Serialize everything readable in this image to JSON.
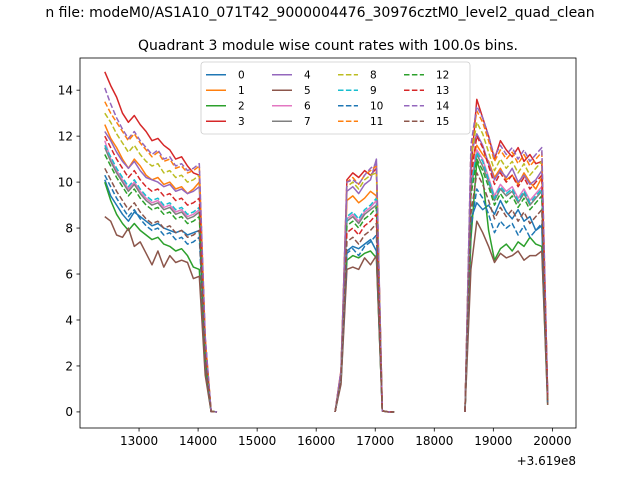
{
  "figure": {
    "suptitle": "n file: modeM0/AS1A10_071T42_9000004476_30976cztM0_level2_quad_clean",
    "title": "Quadrant 3 module wise count rates with 100.0s bins."
  },
  "chart_data": {
    "type": "line",
    "title": "Quadrant 3 module wise count rates with 100.0s bins.",
    "xlabel": "",
    "ylabel": "",
    "x_offset_label": "+3.619e8",
    "xlim": [
      12000,
      20400
    ],
    "ylim": [
      -0.7,
      15.4
    ],
    "xticks": [
      13000,
      14000,
      15000,
      16000,
      17000,
      18000,
      19000,
      20000
    ],
    "yticks": [
      0,
      2,
      4,
      6,
      8,
      10,
      12,
      14
    ],
    "grid": false,
    "legend": {
      "placement": "upper-center",
      "columns": 4
    },
    "segments_x": [
      [
        12420,
        12520,
        12620,
        12720,
        12820,
        12920,
        13020,
        13120,
        13220,
        13320,
        13420,
        13520,
        13620,
        13720,
        13820,
        13920,
        14020,
        14120,
        14220,
        14320
      ],
      [
        16320,
        16420,
        16520,
        16620,
        16720,
        16820,
        16920,
        17020,
        17120,
        17220,
        17320
      ],
      [
        18520,
        18620,
        18720,
        18820,
        18920,
        19020,
        19120,
        19220,
        19320,
        19420,
        19520,
        19620,
        19720,
        19820,
        19920
      ]
    ],
    "series": [
      {
        "name": "0",
        "color": "#1f77b4",
        "dashed": false,
        "segments": [
          [
            10.1,
            9.4,
            9.0,
            8.6,
            8.3,
            8.7,
            8.5,
            8.3,
            8.1,
            8.2,
            8.0,
            7.9,
            7.8,
            7.9,
            7.7,
            7.8,
            7.9,
            2.5,
            0.02,
            0.0
          ],
          [
            0.0,
            1.5,
            7.0,
            7.2,
            7.1,
            7.3,
            7.5,
            7.0,
            0.05,
            0.0,
            0.0
          ],
          [
            0.0,
            8.4,
            9.1,
            8.8,
            9.0,
            8.6,
            9.2,
            8.7,
            8.4,
            8.8,
            8.3,
            8.5,
            7.9,
            8.1,
            0.5
          ]
        ]
      },
      {
        "name": "1",
        "color": "#ff7f0e",
        "dashed": false,
        "segments": [
          [
            12.5,
            11.9,
            11.5,
            11.0,
            10.6,
            11.0,
            10.7,
            10.3,
            10.1,
            10.2,
            9.9,
            10.0,
            9.7,
            9.8,
            9.5,
            9.7,
            10.0,
            3.0,
            0.02,
            0.0
          ],
          [
            0.0,
            1.6,
            9.2,
            9.4,
            9.1,
            9.3,
            9.6,
            9.4,
            0.05,
            0.0,
            0.0
          ],
          [
            0.0,
            10.8,
            11.6,
            11.2,
            10.9,
            10.2,
            10.6,
            10.1,
            10.3,
            9.9,
            10.4,
            10.0,
            9.7,
            10.2,
            0.6
          ]
        ]
      },
      {
        "name": "2",
        "color": "#2ca02c",
        "dashed": false,
        "segments": [
          [
            10.0,
            9.2,
            8.6,
            8.2,
            7.9,
            8.2,
            7.9,
            7.7,
            7.5,
            7.6,
            7.3,
            7.2,
            7.0,
            7.1,
            6.8,
            6.3,
            6.2,
            1.8,
            0.02,
            0.0
          ],
          [
            0.0,
            1.3,
            6.6,
            6.8,
            6.7,
            6.9,
            7.0,
            6.7,
            0.04,
            0.0,
            0.0
          ],
          [
            0.0,
            7.5,
            10.9,
            10.2,
            7.9,
            6.6,
            7.1,
            7.3,
            7.0,
            7.4,
            7.2,
            7.6,
            7.3,
            7.2,
            0.3
          ]
        ]
      },
      {
        "name": "3",
        "color": "#d62728",
        "dashed": false,
        "segments": [
          [
            14.8,
            14.2,
            13.7,
            13.0,
            12.6,
            12.9,
            12.5,
            12.2,
            11.8,
            11.9,
            11.6,
            11.4,
            11.0,
            11.1,
            10.7,
            10.4,
            10.3,
            3.2,
            0.02,
            0.0
          ],
          [
            0.0,
            1.8,
            10.1,
            10.4,
            10.2,
            10.5,
            10.3,
            10.6,
            0.05,
            0.0,
            0.0
          ],
          [
            0.0,
            10.5,
            13.6,
            12.8,
            12.0,
            11.0,
            11.8,
            11.4,
            11.1,
            11.5,
            10.9,
            11.2,
            10.8,
            10.9,
            0.7
          ]
        ]
      },
      {
        "name": "4",
        "color": "#9467bd",
        "dashed": false,
        "segments": [
          [
            12.2,
            11.8,
            11.3,
            10.9,
            10.6,
            10.9,
            10.5,
            10.2,
            10.1,
            10.0,
            9.8,
            9.9,
            9.6,
            9.7,
            9.5,
            9.6,
            9.8,
            2.9,
            0.02,
            0.0
          ],
          [
            0.0,
            1.7,
            9.6,
            9.8,
            9.5,
            9.9,
            10.1,
            11.0,
            0.05,
            0.0,
            0.0
          ],
          [
            0.0,
            11.2,
            12.1,
            11.6,
            10.8,
            10.1,
            10.5,
            10.2,
            10.6,
            10.0,
            10.3,
            9.9,
            10.1,
            10.5,
            0.6
          ]
        ]
      },
      {
        "name": "5",
        "color": "#8c564b",
        "dashed": false,
        "segments": [
          [
            8.5,
            8.3,
            7.7,
            7.6,
            8.0,
            7.2,
            7.4,
            6.9,
            6.4,
            7.0,
            6.3,
            6.8,
            6.5,
            6.6,
            6.5,
            5.8,
            5.9,
            1.6,
            0.02,
            0.0
          ],
          [
            0.0,
            1.2,
            6.2,
            6.3,
            6.2,
            6.7,
            6.4,
            6.8,
            0.04,
            0.0,
            0.0
          ],
          [
            0.0,
            6.2,
            8.3,
            7.8,
            7.2,
            6.5,
            6.9,
            6.7,
            6.8,
            7.0,
            6.6,
            6.8,
            6.8,
            7.0,
            0.3
          ]
        ]
      },
      {
        "name": "6",
        "color": "#e377c2",
        "dashed": false,
        "segments": [
          [
            11.8,
            11.0,
            10.5,
            10.1,
            9.7,
            10.0,
            9.6,
            9.3,
            9.1,
            9.2,
            8.9,
            9.0,
            8.7,
            8.8,
            8.5,
            8.6,
            8.8,
            2.6,
            0.02,
            0.0
          ],
          [
            0.0,
            1.5,
            8.4,
            8.6,
            8.3,
            8.7,
            8.9,
            9.2,
            0.05,
            0.0,
            0.0
          ],
          [
            0.0,
            10.0,
            11.4,
            11.0,
            10.2,
            9.4,
            9.9,
            9.6,
            9.8,
            9.3,
            9.7,
            9.2,
            9.5,
            9.8,
            0.5
          ]
        ]
      },
      {
        "name": "7",
        "color": "#7f7f7f",
        "dashed": false,
        "segments": [
          [
            11.5,
            10.9,
            10.4,
            10.0,
            9.6,
            9.9,
            9.5,
            9.2,
            9.0,
            9.1,
            8.8,
            8.9,
            8.6,
            8.7,
            8.4,
            8.5,
            8.7,
            2.5,
            0.02,
            0.0
          ],
          [
            0.0,
            1.5,
            8.3,
            8.5,
            8.2,
            8.6,
            8.8,
            9.0,
            0.05,
            0.0,
            0.0
          ],
          [
            0.0,
            9.7,
            11.2,
            10.7,
            10.0,
            9.2,
            9.7,
            9.4,
            9.6,
            9.1,
            9.5,
            9.0,
            9.3,
            9.6,
            0.5
          ]
        ]
      },
      {
        "name": "8",
        "color": "#bcbd22",
        "dashed": true,
        "segments": [
          [
            13.0,
            12.6,
            12.1,
            11.7,
            11.3,
            11.6,
            11.2,
            10.9,
            10.7,
            10.8,
            10.4,
            10.5,
            10.2,
            10.3,
            10.0,
            10.1,
            10.3,
            3.1,
            0.02,
            0.0
          ],
          [
            0.0,
            1.7,
            9.8,
            10.0,
            9.7,
            10.1,
            10.3,
            10.4,
            0.05,
            0.0,
            0.0
          ],
          [
            0.0,
            11.0,
            12.6,
            12.1,
            11.3,
            10.5,
            11.0,
            10.6,
            10.9,
            10.4,
            10.8,
            10.3,
            10.6,
            10.9,
            0.6
          ]
        ]
      },
      {
        "name": "9",
        "color": "#17becf",
        "dashed": true,
        "segments": [
          [
            11.6,
            11.1,
            10.6,
            10.2,
            9.8,
            10.1,
            9.7,
            9.4,
            9.2,
            9.3,
            9.0,
            9.1,
            8.8,
            8.9,
            8.6,
            8.7,
            8.9,
            2.6,
            0.02,
            0.0
          ],
          [
            0.0,
            1.5,
            8.5,
            8.7,
            8.4,
            8.8,
            9.0,
            9.3,
            0.05,
            0.0,
            0.0
          ],
          [
            0.0,
            9.8,
            11.3,
            10.9,
            10.1,
            9.3,
            9.8,
            9.5,
            9.7,
            9.2,
            9.6,
            9.1,
            9.4,
            9.7,
            0.5
          ]
        ]
      },
      {
        "name": "10",
        "color": "#1f77b4",
        "dashed": true,
        "segments": [
          [
            10.3,
            9.8,
            9.3,
            8.9,
            8.5,
            8.8,
            8.4,
            8.1,
            7.9,
            8.0,
            7.7,
            7.8,
            7.5,
            7.6,
            7.3,
            7.4,
            7.6,
            2.2,
            0.02,
            0.0
          ],
          [
            0.0,
            1.4,
            6.9,
            7.1,
            6.8,
            7.2,
            7.4,
            7.7,
            0.04,
            0.0,
            0.0
          ],
          [
            0.0,
            8.0,
            9.7,
            9.3,
            8.6,
            7.8,
            8.3,
            8.0,
            8.2,
            7.7,
            8.1,
            7.6,
            7.9,
            8.2,
            0.4
          ]
        ]
      },
      {
        "name": "11",
        "color": "#ff7f0e",
        "dashed": true,
        "segments": [
          [
            13.5,
            13.0,
            12.6,
            12.2,
            11.8,
            12.1,
            11.7,
            11.4,
            11.1,
            11.3,
            10.9,
            11.0,
            10.6,
            10.7,
            10.4,
            10.5,
            10.7,
            3.2,
            0.02,
            0.0
          ],
          [
            0.0,
            1.8,
            10.0,
            10.2,
            9.9,
            10.3,
            10.5,
            10.7,
            0.05,
            0.0,
            0.0
          ],
          [
            0.0,
            11.4,
            13.1,
            12.6,
            11.8,
            10.9,
            11.4,
            11.0,
            11.3,
            10.8,
            11.2,
            10.7,
            11.0,
            11.3,
            0.6
          ]
        ]
      },
      {
        "name": "12",
        "color": "#2ca02c",
        "dashed": true,
        "segments": [
          [
            11.2,
            10.7,
            10.2,
            9.8,
            9.4,
            9.7,
            9.3,
            9.0,
            8.8,
            8.9,
            8.6,
            8.7,
            8.4,
            8.5,
            8.2,
            8.3,
            8.5,
            2.4,
            0.02,
            0.0
          ],
          [
            0.0,
            1.5,
            8.1,
            8.3,
            8.0,
            8.4,
            8.6,
            8.9,
            0.05,
            0.0,
            0.0
          ],
          [
            0.0,
            9.4,
            11.0,
            10.5,
            9.8,
            9.0,
            9.5,
            9.1,
            9.4,
            8.9,
            9.3,
            8.8,
            9.1,
            9.4,
            0.5
          ]
        ]
      },
      {
        "name": "13",
        "color": "#d62728",
        "dashed": true,
        "segments": [
          [
            12.0,
            11.5,
            11.0,
            10.6,
            10.2,
            10.5,
            10.1,
            9.8,
            9.6,
            9.7,
            9.4,
            9.5,
            9.2,
            9.3,
            9.0,
            9.1,
            9.3,
            2.7,
            0.02,
            0.0
          ],
          [
            0.0,
            1.6,
            7.8,
            8.0,
            7.7,
            8.1,
            8.3,
            8.6,
            0.05,
            0.0,
            0.0
          ],
          [
            0.0,
            10.2,
            12.0,
            11.5,
            10.7,
            9.9,
            10.4,
            10.0,
            10.3,
            9.8,
            10.2,
            9.7,
            10.0,
            10.3,
            0.5
          ]
        ]
      },
      {
        "name": "14",
        "color": "#9467bd",
        "dashed": true,
        "segments": [
          [
            14.1,
            13.4,
            12.8,
            12.3,
            11.9,
            12.2,
            11.8,
            11.5,
            11.2,
            11.4,
            11.0,
            11.1,
            10.7,
            10.8,
            10.5,
            10.6,
            10.8,
            3.3,
            0.02,
            0.0
          ],
          [
            0.0,
            1.8,
            10.0,
            10.1,
            9.9,
            10.3,
            10.6,
            10.8,
            0.05,
            0.0,
            0.0
          ],
          [
            0.0,
            11.6,
            13.3,
            12.8,
            12.0,
            11.1,
            11.6,
            11.2,
            11.5,
            11.0,
            11.4,
            10.9,
            11.2,
            11.5,
            0.7
          ]
        ]
      },
      {
        "name": "15",
        "color": "#8c564b",
        "dashed": true,
        "segments": [
          [
            10.6,
            10.1,
            9.6,
            9.2,
            8.8,
            9.1,
            8.7,
            8.4,
            8.2,
            8.3,
            8.0,
            8.1,
            7.8,
            7.9,
            7.6,
            7.7,
            7.9,
            2.3,
            0.02,
            0.0
          ],
          [
            0.0,
            1.4,
            7.4,
            7.6,
            7.3,
            7.7,
            7.9,
            8.2,
            0.04,
            0.0,
            0.0
          ],
          [
            0.0,
            8.6,
            10.4,
            9.9,
            9.2,
            8.4,
            8.9,
            8.5,
            8.8,
            8.3,
            8.7,
            8.2,
            8.5,
            8.8,
            0.4
          ]
        ]
      }
    ]
  }
}
